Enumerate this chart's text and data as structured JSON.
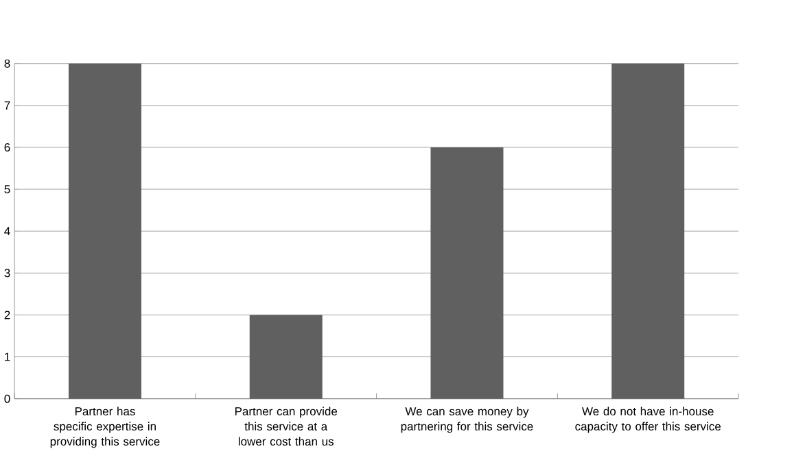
{
  "chart_data": {
    "type": "bar",
    "categories": [
      "Partner has specific expertise in providing this service",
      "Partner can provide this service at a lower cost than us",
      "We can save money by partnering for this service",
      "We do not have in-house capacity to offer this service"
    ],
    "values": [
      8,
      2,
      6,
      8
    ],
    "color": "#606060",
    "ylim": [
      0,
      8
    ],
    "yticks": [
      0,
      1,
      2,
      3,
      4,
      5,
      6,
      7,
      8
    ],
    "grid": "y"
  }
}
